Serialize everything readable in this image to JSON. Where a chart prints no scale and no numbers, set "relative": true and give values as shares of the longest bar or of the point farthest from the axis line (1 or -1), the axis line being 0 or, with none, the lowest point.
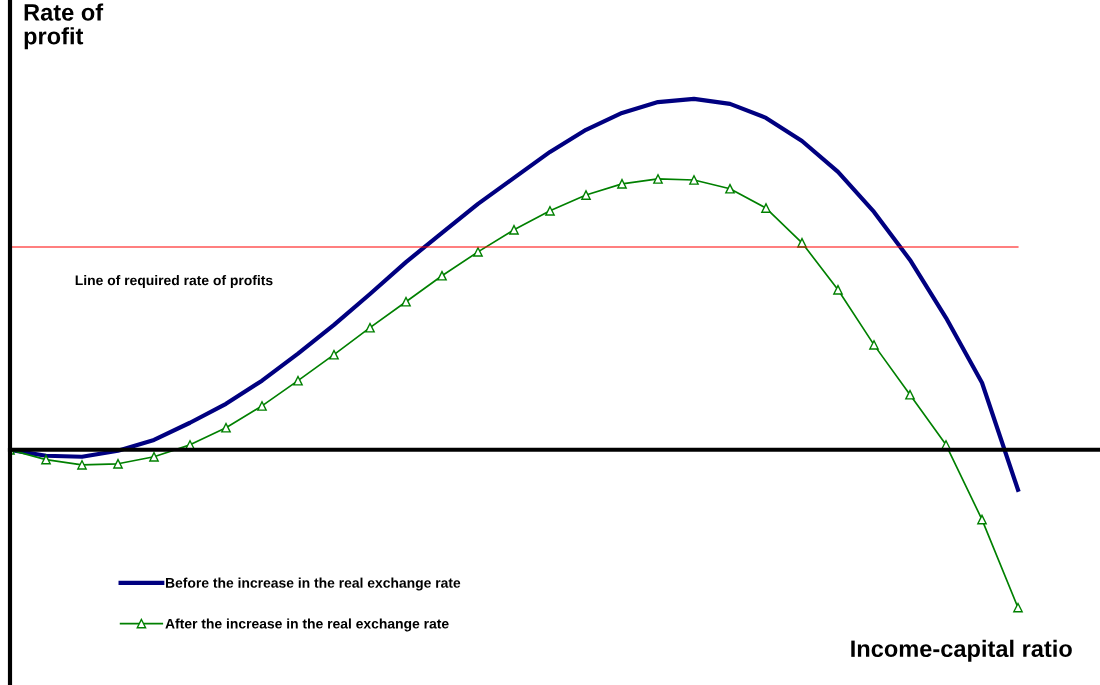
{
  "chart_data": {
    "type": "line",
    "relative": true,
    "xlabel": "Income-capital ratio",
    "ylabel": "Rate of\nprofit",
    "categories": [
      null,
      null,
      null,
      null,
      null,
      null,
      null,
      null,
      null,
      null,
      null,
      null,
      null,
      null,
      null,
      null,
      null,
      null,
      null,
      null,
      null,
      null,
      null,
      null,
      null,
      null,
      null,
      null,
      null
    ],
    "series": [
      {
        "name": "Before the increase in the real exchange rate",
        "color": "#000080",
        "marker": "none",
        "values": [
          0,
          -0.017,
          -0.02,
          -0.003,
          0.028,
          0.077,
          0.131,
          0.197,
          0.274,
          0.356,
          0.444,
          0.535,
          0.618,
          0.701,
          0.775,
          0.849,
          0.912,
          0.96,
          0.991,
          1.0,
          0.986,
          0.946,
          0.88,
          0.792,
          0.678,
          0.541,
          0.376,
          0.191,
          -0.114
        ]
      },
      {
        "name": "After the increase in the real exchange rate",
        "color": "#008000",
        "marker": "triangle",
        "values": [
          0,
          -0.028,
          -0.043,
          -0.04,
          -0.02,
          0.014,
          0.063,
          0.125,
          0.197,
          0.271,
          0.348,
          0.422,
          0.496,
          0.564,
          0.627,
          0.681,
          0.726,
          0.758,
          0.772,
          0.769,
          0.744,
          0.689,
          0.59,
          0.456,
          0.299,
          0.157,
          0.014,
          -0.199,
          -0.45
        ]
      }
    ],
    "ref_lines": [
      {
        "axis": "y",
        "value": 0.578,
        "label": "Line of required rate of profits",
        "color": "#ff0000"
      }
    ],
    "legend": "bottom left",
    "grid": false
  }
}
